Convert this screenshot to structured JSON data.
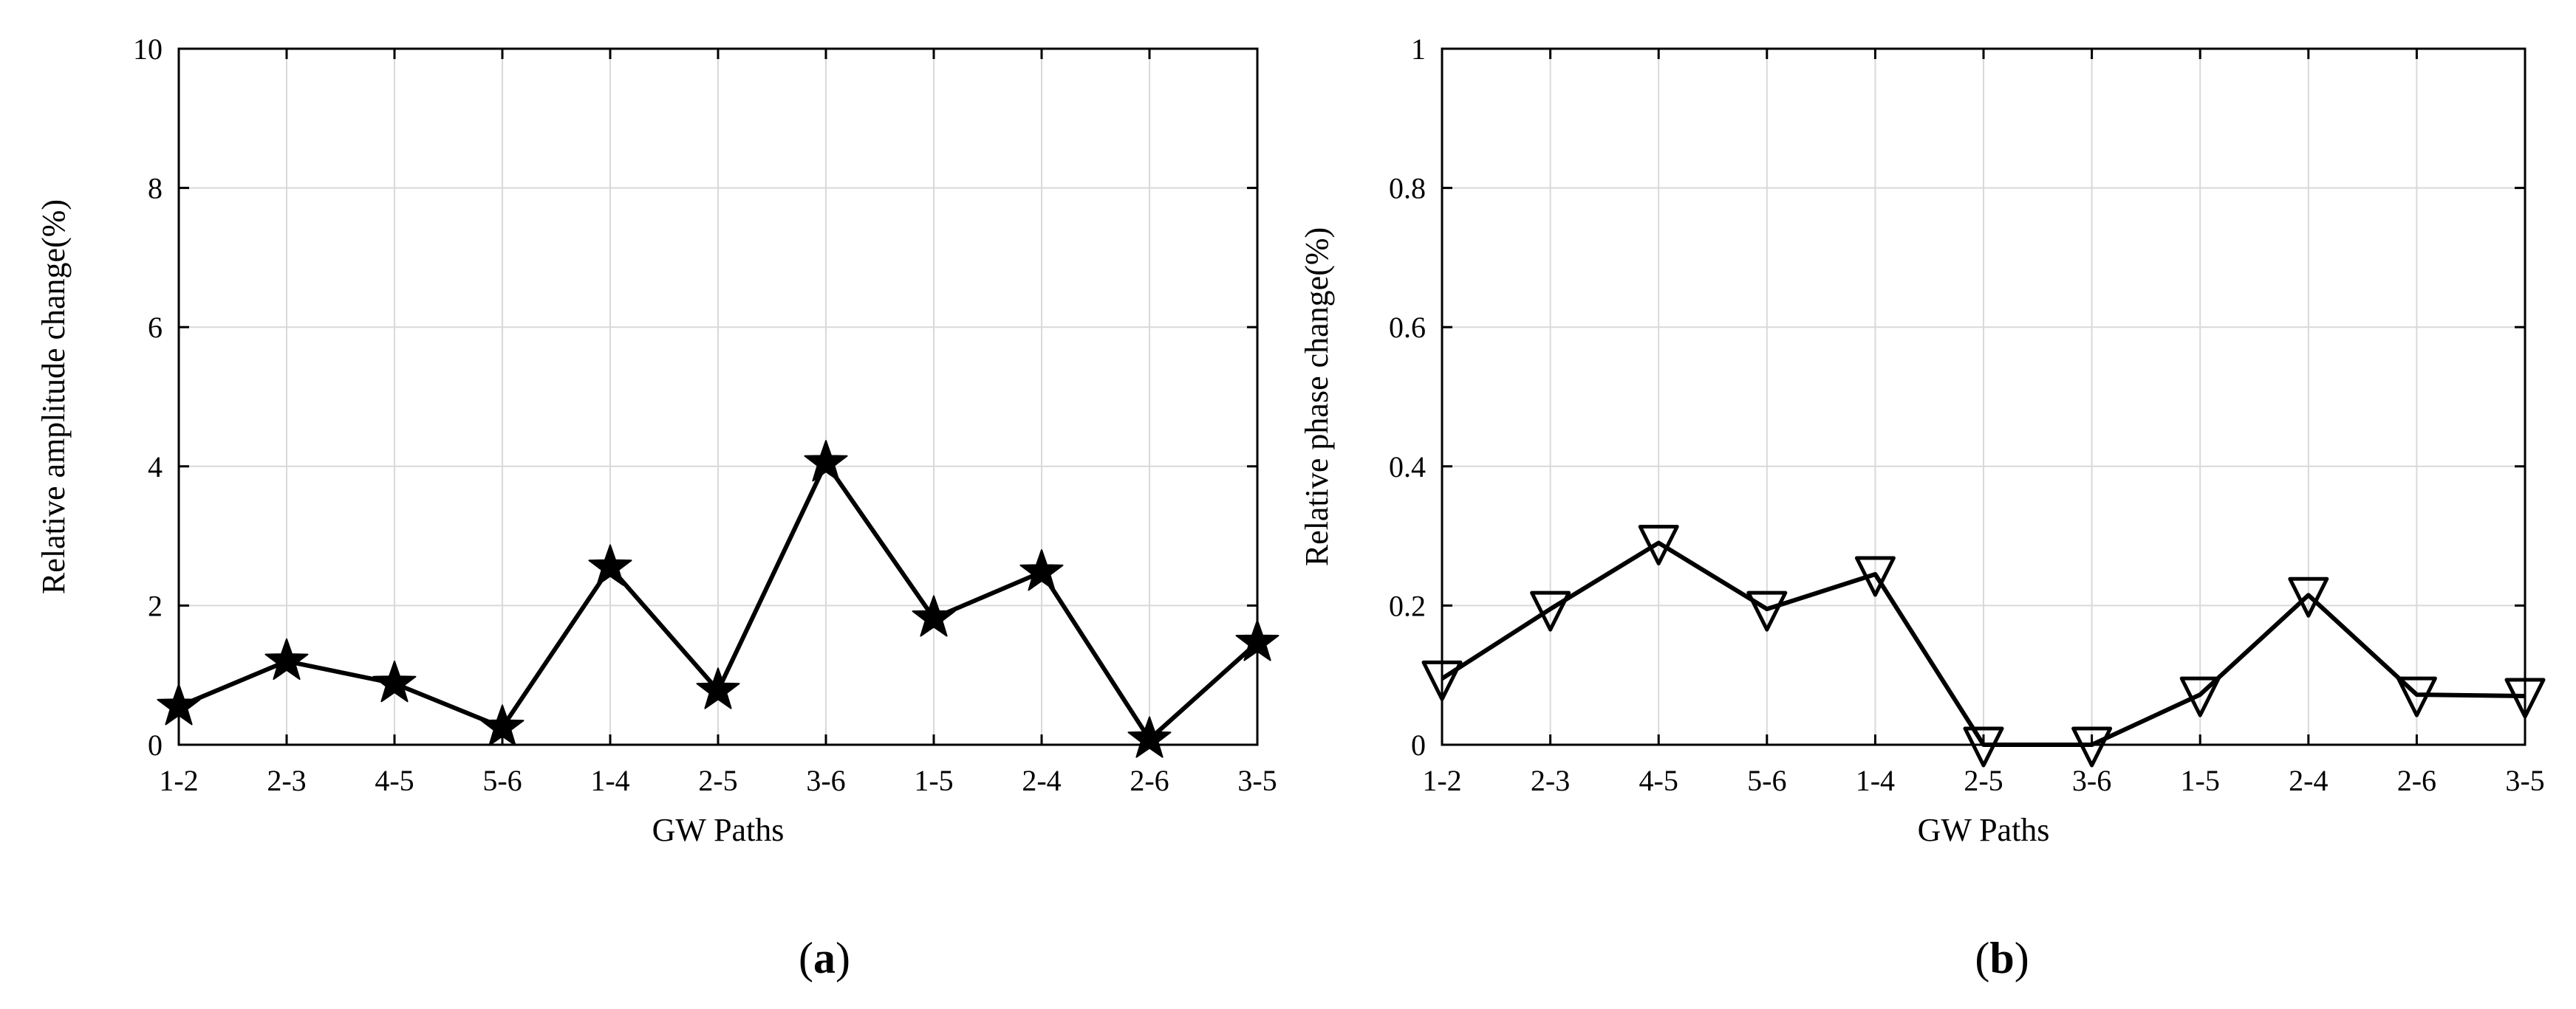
{
  "colors": {
    "line": "#000000",
    "grid": "#d9d9d9",
    "background": "#ffffff"
  },
  "chart_data": [
    {
      "type": "line",
      "panel_label_open": "(",
      "panel_label": "a",
      "panel_label_close": ")",
      "xlabel": "GW Paths",
      "ylabel": "Relative amplitude change(%)",
      "categories": [
        "1-2",
        "2-3",
        "4-5",
        "5-6",
        "1-4",
        "2-5",
        "3-6",
        "1-5",
        "2-4",
        "2-6",
        "3-5"
      ],
      "series": [
        {
          "name": "amplitude",
          "marker": "star",
          "values": [
            0.55,
            1.2,
            0.88,
            0.25,
            2.55,
            0.78,
            4.05,
            1.82,
            2.48,
            0.08,
            1.47
          ]
        }
      ],
      "ylim": [
        0,
        10
      ],
      "yticks": [
        0,
        2,
        4,
        6,
        8,
        10
      ],
      "ytick_labels": [
        "0",
        "2",
        "4",
        "6",
        "8",
        "10"
      ],
      "grid": true
    },
    {
      "type": "line",
      "panel_label_open": "(",
      "panel_label": "b",
      "panel_label_close": ")",
      "xlabel": "GW Paths",
      "ylabel": "Relative phase change(%)",
      "categories": [
        "1-2",
        "2-3",
        "4-5",
        "5-6",
        "1-4",
        "2-5",
        "3-6",
        "1-5",
        "2-4",
        "2-6",
        "3-5"
      ],
      "series": [
        {
          "name": "phase",
          "marker": "triangle-down",
          "values": [
            0.095,
            0.195,
            0.29,
            0.195,
            0.245,
            0.0,
            0.0,
            0.072,
            0.215,
            0.072,
            0.07
          ]
        }
      ],
      "ylim": [
        0,
        1
      ],
      "yticks": [
        0,
        0.2,
        0.4,
        0.6,
        0.8,
        1
      ],
      "ytick_labels": [
        "0",
        "0.2",
        "0.4",
        "0.6",
        "0.8",
        "1"
      ],
      "grid": true
    }
  ]
}
